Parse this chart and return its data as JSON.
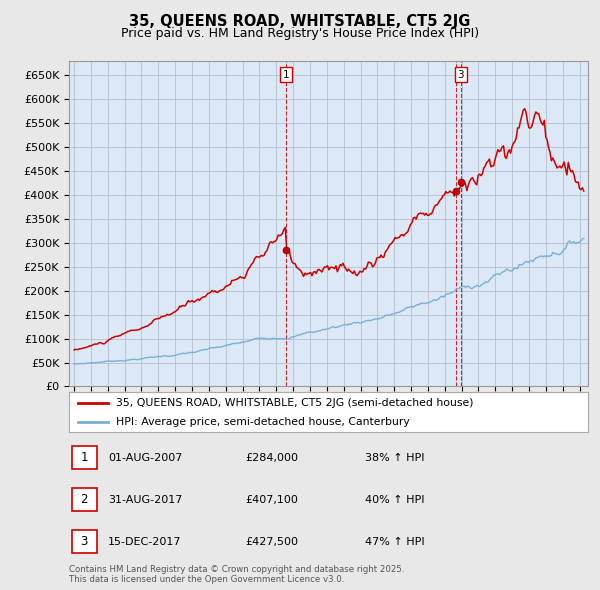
{
  "title": "35, QUEENS ROAD, WHITSTABLE, CT5 2JG",
  "subtitle": "Price paid vs. HM Land Registry's House Price Index (HPI)",
  "red_label": "35, QUEENS ROAD, WHITSTABLE, CT5 2JG (semi-detached house)",
  "blue_label": "HPI: Average price, semi-detached house, Canterbury",
  "footnote": "Contains HM Land Registry data © Crown copyright and database right 2025.\nThis data is licensed under the Open Government Licence v3.0.",
  "transactions": [
    {
      "num": 1,
      "date": "01-AUG-2007",
      "price": "284,000",
      "hpi_change": "38% ↑ HPI",
      "year": 2007.58,
      "price_val": 284000
    },
    {
      "num": 2,
      "date": "31-AUG-2017",
      "price": "407,100",
      "hpi_change": "40% ↑ HPI",
      "year": 2017.67,
      "price_val": 407100
    },
    {
      "num": 3,
      "date": "15-DEC-2017",
      "price": "427,500",
      "hpi_change": "47% ↑ HPI",
      "year": 2017.96,
      "price_val": 427500
    }
  ],
  "vline_info": [
    {
      "year": 2007.58,
      "label": "1"
    },
    {
      "year": 2017.67,
      "label": null
    },
    {
      "year": 2017.96,
      "label": "3"
    }
  ],
  "ylim": [
    0,
    680000
  ],
  "yticks": [
    0,
    50000,
    100000,
    150000,
    200000,
    250000,
    300000,
    350000,
    400000,
    450000,
    500000,
    550000,
    600000,
    650000
  ],
  "ytick_labels": [
    "£0",
    "£50K",
    "£100K",
    "£150K",
    "£200K",
    "£250K",
    "£300K",
    "£350K",
    "£400K",
    "£450K",
    "£500K",
    "£550K",
    "£600K",
    "£650K"
  ],
  "xlim_left": 1994.7,
  "xlim_right": 2025.5,
  "red_color": "#cc0000",
  "blue_color": "#7ab0d4",
  "bg_color": "#e8e8e8",
  "plot_bg_color": "#dce8f5",
  "grid_color": "#b0c0d0",
  "title_fontsize": 10.5,
  "subtitle_fontsize": 9,
  "axis_fontsize": 8,
  "xtick_fontsize": 7.5
}
